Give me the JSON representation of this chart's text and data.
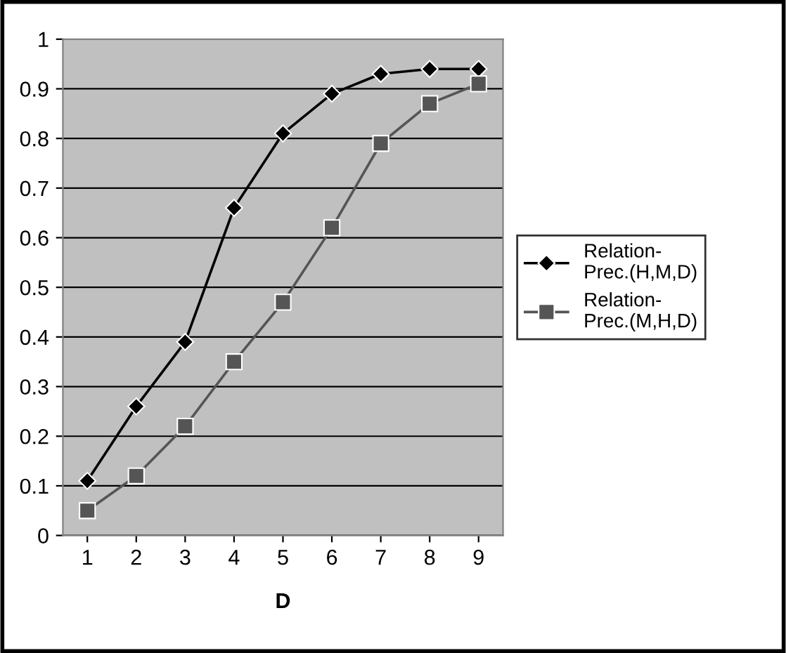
{
  "chart_data": {
    "type": "line",
    "xlabel": "D",
    "categories": [
      "1",
      "2",
      "3",
      "4",
      "5",
      "6",
      "7",
      "8",
      "9"
    ],
    "series": [
      {
        "name": "Relation-\nPrec.(H,M,D)",
        "color": "#000000",
        "marker": "diamond",
        "values": [
          0.11,
          0.26,
          0.39,
          0.66,
          0.81,
          0.89,
          0.93,
          0.94,
          0.94
        ]
      },
      {
        "name": "Relation-\nPrec.(M,H,D)",
        "color": "#555555",
        "marker": "square",
        "values": [
          0.05,
          0.12,
          0.22,
          0.35,
          0.47,
          0.62,
          0.79,
          0.87,
          0.91
        ]
      }
    ],
    "ylim": [
      0,
      1
    ],
    "yticks": [
      0,
      0.1,
      0.2,
      0.3,
      0.4,
      0.5,
      0.6,
      0.7,
      0.8,
      0.9,
      1
    ],
    "grid": "y",
    "legend": "right"
  }
}
